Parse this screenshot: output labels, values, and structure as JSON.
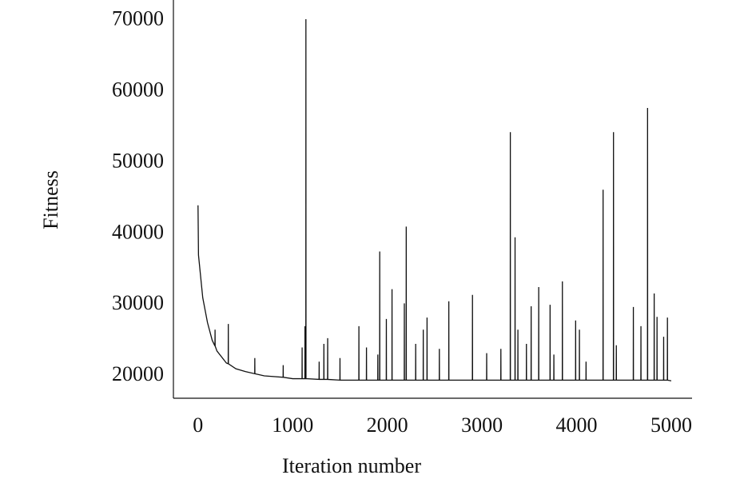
{
  "chart_data": {
    "type": "line",
    "x_label": "Iteration number",
    "y_label": "Fitness",
    "xlim": [
      -260,
      5220
    ],
    "ylim": [
      16850,
      72900
    ],
    "xticks": [
      0,
      1000,
      2000,
      3000,
      4000,
      5000
    ],
    "yticks": [
      20000,
      30000,
      40000,
      50000,
      60000,
      70000
    ],
    "grid": false,
    "series": [
      {
        "color": "#111111",
        "x": [
          0,
          5,
          50,
          100,
          150,
          179,
          180,
          181,
          200,
          300,
          319,
          320,
          321,
          400,
          500,
          599,
          600,
          601,
          700,
          899,
          900,
          901,
          1000,
          1099,
          1100,
          1101,
          1129,
          1130,
          1131,
          1139,
          1140,
          1141,
          1279,
          1280,
          1281,
          1329,
          1330,
          1331,
          1369,
          1370,
          1371,
          1499,
          1500,
          1501,
          1699,
          1700,
          1701,
          1779,
          1780,
          1781,
          1899,
          1900,
          1901,
          1919,
          1920,
          1921,
          1989,
          1990,
          1991,
          2049,
          2050,
          2051,
          2179,
          2180,
          2181,
          2199,
          2200,
          2201,
          2299,
          2300,
          2301,
          2379,
          2380,
          2381,
          2419,
          2420,
          2421,
          2549,
          2550,
          2551,
          2649,
          2650,
          2651,
          2899,
          2900,
          2901,
          3049,
          3050,
          3051,
          3199,
          3200,
          3201,
          3299,
          3300,
          3301,
          3349,
          3350,
          3351,
          3379,
          3380,
          3381,
          3469,
          3470,
          3471,
          3519,
          3520,
          3521,
          3599,
          3600,
          3601,
          3719,
          3720,
          3721,
          3759,
          3760,
          3761,
          3849,
          3850,
          3851,
          3989,
          3990,
          3991,
          4029,
          4030,
          4031,
          4099,
          4100,
          4101,
          4279,
          4280,
          4281,
          4389,
          4390,
          4391,
          4419,
          4420,
          4421,
          4599,
          4600,
          4601,
          4679,
          4680,
          4681,
          4749,
          4750,
          4751,
          4819,
          4820,
          4821,
          4849,
          4850,
          4851,
          4919,
          4920,
          4921,
          4959,
          4960,
          4961,
          5000
        ],
        "values": [
          44000,
          37000,
          31000,
          27500,
          25000,
          24200,
          26500,
          24200,
          23500,
          21800,
          21700,
          27300,
          21700,
          21000,
          20600,
          20300,
          22500,
          20300,
          20000,
          19800,
          21500,
          19800,
          19600,
          19600,
          24000,
          19600,
          19600,
          27000,
          19600,
          19600,
          70200,
          19600,
          19500,
          22000,
          19500,
          19500,
          24500,
          19500,
          19500,
          25300,
          19500,
          19400,
          22500,
          19400,
          19400,
          27000,
          19400,
          19400,
          24000,
          19400,
          19400,
          23000,
          19400,
          19400,
          37500,
          19400,
          19400,
          28000,
          19400,
          19400,
          32200,
          19400,
          19400,
          30200,
          19400,
          19400,
          41000,
          19400,
          19400,
          24500,
          19400,
          19400,
          26500,
          19400,
          19400,
          28200,
          19400,
          19400,
          23800,
          19400,
          19400,
          30500,
          19400,
          19400,
          31400,
          19400,
          19400,
          23200,
          19400,
          19400,
          23800,
          19400,
          19400,
          54300,
          19400,
          19400,
          39500,
          19400,
          19400,
          26500,
          19400,
          19400,
          24500,
          19400,
          19400,
          29800,
          19400,
          19400,
          32500,
          19400,
          19400,
          30000,
          19400,
          19400,
          23000,
          19400,
          19400,
          33300,
          19400,
          19400,
          27800,
          19400,
          19400,
          26500,
          19400,
          19400,
          22000,
          19400,
          19400,
          46200,
          19400,
          19400,
          54300,
          19400,
          19400,
          24300,
          19400,
          19400,
          29700,
          19400,
          19400,
          27000,
          19400,
          19400,
          57700,
          19400,
          19400,
          31600,
          19400,
          19400,
          28300,
          19400,
          19400,
          25500,
          19400,
          19400,
          28200,
          19400,
          19300
        ]
      }
    ]
  }
}
